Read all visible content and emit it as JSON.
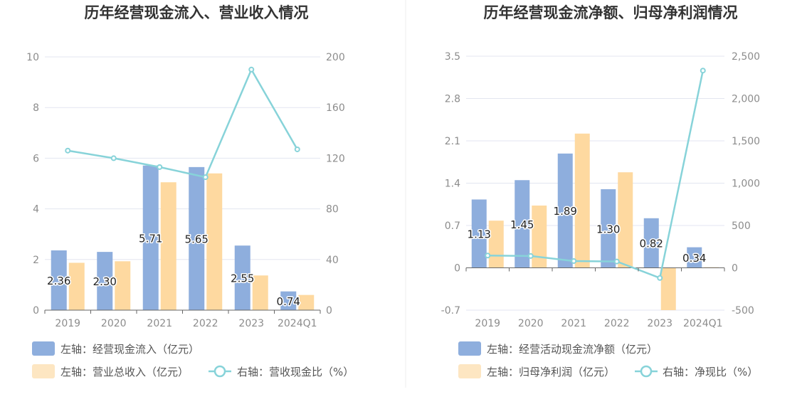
{
  "colors": {
    "bar_primary": "#8eaedd",
    "bar_secondary": "#fed9a0",
    "legend_secondary": "#fde6c2",
    "line": "#87d3d9",
    "grid": "#e3e6f0",
    "axis": "#666666"
  },
  "chart_data": [
    {
      "type": "bar",
      "title": "历年经营现金流入、营业收入情况",
      "categories": [
        "2019",
        "2020",
        "2021",
        "2022",
        "2023",
        "2024Q1"
      ],
      "y_left": {
        "min": 0,
        "max": 10,
        "ticks": [
          "0",
          "2",
          "4",
          "6",
          "8",
          "10"
        ]
      },
      "y_right": {
        "min": 0,
        "max": 200,
        "ticks": [
          "0",
          "40",
          "80",
          "120",
          "160",
          "200"
        ]
      },
      "series": [
        {
          "name": "左轴：经营现金流入（亿元）",
          "kind": "bar",
          "axis": "left",
          "values": [
            2.36,
            2.3,
            5.71,
            5.65,
            2.55,
            0.74
          ],
          "labels": [
            "2.36",
            "2.30",
            "5.71",
            "5.65",
            "2.55",
            "0.74"
          ]
        },
        {
          "name": "左轴：营业总收入（亿元）",
          "kind": "bar",
          "axis": "left",
          "values": [
            1.87,
            1.93,
            5.05,
            5.4,
            1.37,
            0.6
          ]
        },
        {
          "name": "右轴：营收现金比（%）",
          "kind": "line",
          "axis": "right",
          "values": [
            126,
            120,
            113,
            105,
            190,
            127
          ]
        }
      ],
      "legend": "bottom-left"
    },
    {
      "type": "bar",
      "title": "历年经营现金流净额、归母净利润情况",
      "categories": [
        "2019",
        "2020",
        "2021",
        "2022",
        "2023",
        "2024Q1"
      ],
      "y_left": {
        "min": -0.7,
        "max": 3.5,
        "ticks": [
          "-0.7",
          "0",
          "0.7",
          "1.4",
          "2.1",
          "2.8",
          "3.5"
        ]
      },
      "y_right": {
        "min": -500,
        "max": 2500,
        "ticks": [
          "-500",
          "0",
          "500",
          "1,000",
          "1,500",
          "2,000",
          "2,500"
        ]
      },
      "series": [
        {
          "name": "左轴：经营活动现金流净额（亿元）",
          "kind": "bar",
          "axis": "left",
          "values": [
            1.13,
            1.45,
            1.89,
            1.3,
            0.82,
            0.34
          ],
          "labels": [
            "1.13",
            "1.45",
            "1.89",
            "1.30",
            "0.82",
            "0.34"
          ]
        },
        {
          "name": "左轴：归母净利润（亿元）",
          "kind": "bar",
          "axis": "left",
          "values": [
            0.78,
            1.03,
            2.22,
            1.58,
            -0.7,
            0.01
          ]
        },
        {
          "name": "右轴：净现比（%）",
          "kind": "line",
          "axis": "right",
          "values": [
            145,
            140,
            80,
            75,
            -120,
            2330
          ]
        }
      ],
      "legend": "bottom-left"
    }
  ]
}
